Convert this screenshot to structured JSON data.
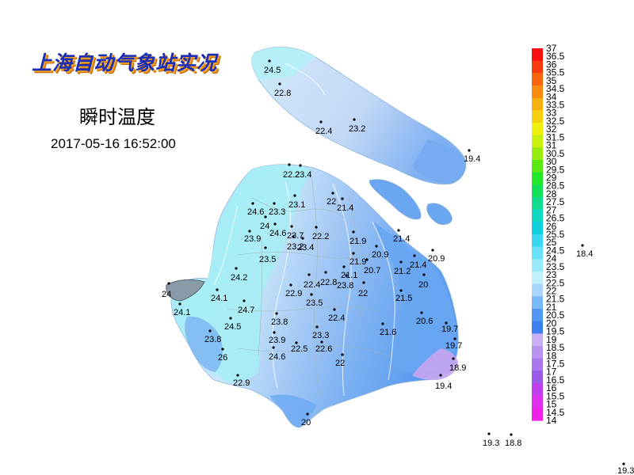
{
  "header": {
    "title": "上海自动气象站实况",
    "subtitle": "瞬时温度",
    "timestamp": "2017-05-16 16:52:00"
  },
  "legend": {
    "ticks": [
      "37",
      "36.5",
      "36",
      "35.5",
      "35",
      "34.5",
      "34",
      "33.5",
      "33",
      "32.5",
      "32",
      "31.5",
      "31",
      "30.5",
      "30",
      "29.5",
      "29",
      "28.5",
      "28",
      "27.5",
      "27",
      "26.5",
      "26",
      "25.5",
      "25",
      "24.5",
      "24",
      "23.5",
      "23",
      "22.5",
      "22",
      "21.5",
      "21",
      "20.5",
      "20",
      "19.5",
      "19",
      "18.5",
      "18",
      "17.5",
      "17",
      "16.5",
      "16",
      "15.5",
      "15",
      "14.5",
      "14"
    ],
    "colors": [
      "#fa1010",
      "#fa3a10",
      "#fa6410",
      "#fa8a10",
      "#f8b010",
      "#f5d010",
      "#f0f010",
      "#c8f010",
      "#98ec10",
      "#5ae810",
      "#22e628",
      "#10e05a",
      "#10dc90",
      "#10d8c0",
      "#10d0e0",
      "#38d8f0",
      "#68e2f6",
      "#98ecfa",
      "#c0f0fc",
      "#a8d6fa",
      "#7ab8f8",
      "#5098f4",
      "#3a80f0",
      "#c8b0f4",
      "#b894f0",
      "#a878ec",
      "#9a5ce8",
      "#c040f0",
      "#e030f0",
      "#f020e8"
    ]
  },
  "stations": [
    {
      "v": "24.5"
    },
    {
      "v": "22.8"
    },
    {
      "v": "22.4"
    },
    {
      "v": "23.2"
    },
    {
      "v": "19.4"
    },
    {
      "v": "22.2"
    },
    {
      "v": "23.4"
    },
    {
      "v": "23.1"
    },
    {
      "v": "22"
    },
    {
      "v": "21.4"
    },
    {
      "v": "24.6"
    },
    {
      "v": "23.3"
    },
    {
      "v": "24"
    },
    {
      "v": "24.6"
    },
    {
      "v": "23.7"
    },
    {
      "v": "22.2"
    },
    {
      "v": "23.9"
    },
    {
      "v": "23.2"
    },
    {
      "v": "23.4"
    },
    {
      "v": "21.9"
    },
    {
      "v": "21.4"
    },
    {
      "v": "20.9"
    },
    {
      "v": "18.4"
    },
    {
      "v": "23.5"
    },
    {
      "v": "21.9"
    },
    {
      "v": "20.9"
    },
    {
      "v": "20.7"
    },
    {
      "v": "21.2"
    },
    {
      "v": "21.4"
    },
    {
      "v": "24.2"
    },
    {
      "v": "21.1"
    },
    {
      "v": "22.4"
    },
    {
      "v": "22.8"
    },
    {
      "v": "23.8"
    },
    {
      "v": "22"
    },
    {
      "v": "20"
    },
    {
      "v": "24"
    },
    {
      "v": "24.1"
    },
    {
      "v": "22.9"
    },
    {
      "v": "23.5"
    },
    {
      "v": "24.1"
    },
    {
      "v": "24.7"
    },
    {
      "v": "21.5"
    },
    {
      "v": "22.4"
    },
    {
      "v": "20.6"
    },
    {
      "v": "24.5"
    },
    {
      "v": "23.8"
    },
    {
      "v": "21.6"
    },
    {
      "v": "19.7"
    },
    {
      "v": "23.8"
    },
    {
      "v": "23.9"
    },
    {
      "v": "23.3"
    },
    {
      "v": "22.5"
    },
    {
      "v": "22.6"
    },
    {
      "v": "19.7"
    },
    {
      "v": "26"
    },
    {
      "v": "24.6"
    },
    {
      "v": "22"
    },
    {
      "v": "18.9"
    },
    {
      "v": "22.9"
    },
    {
      "v": "19.4"
    },
    {
      "v": "20"
    },
    {
      "v": "19.3"
    },
    {
      "v": "18.8"
    },
    {
      "v": "19.3"
    }
  ]
}
